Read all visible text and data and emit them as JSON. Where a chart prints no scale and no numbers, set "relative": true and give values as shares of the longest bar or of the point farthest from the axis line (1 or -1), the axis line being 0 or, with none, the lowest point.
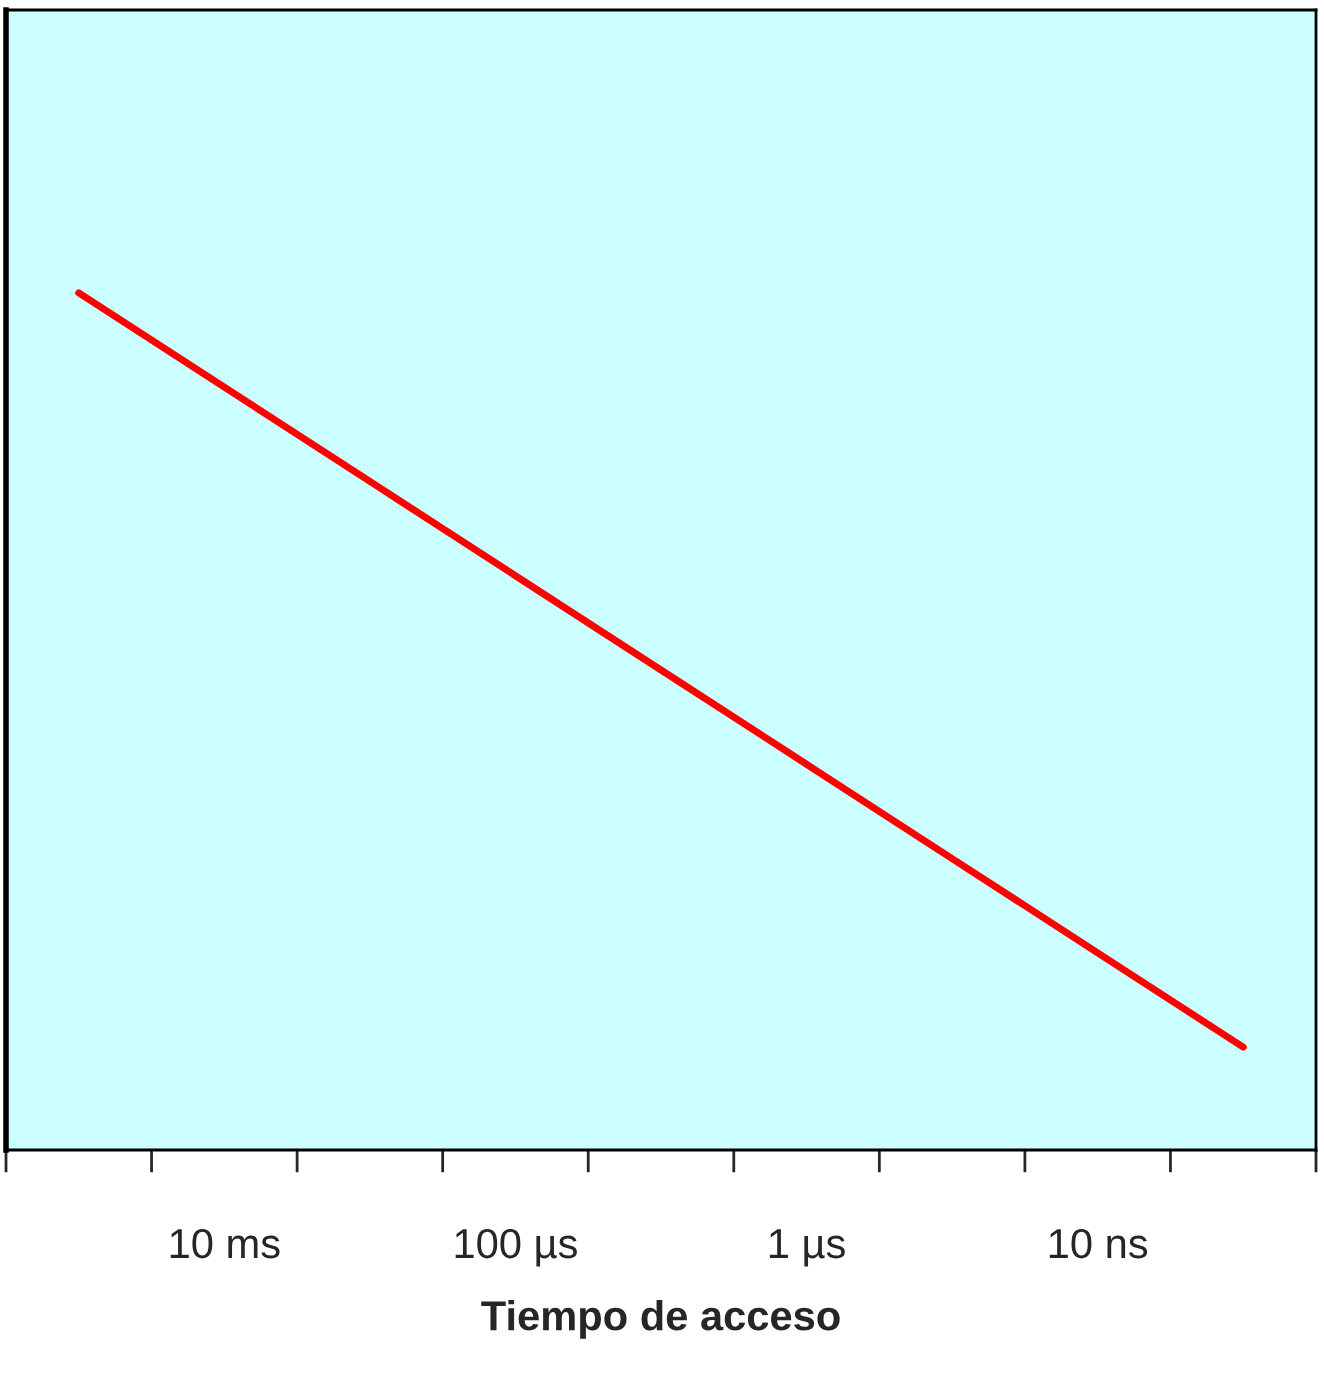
{
  "chart_data": {
    "type": "line",
    "xlabel": "Tiempo de acceso",
    "relative": true,
    "categories": [
      null,
      "10 ms",
      null,
      "100 µs",
      null,
      "1 µs",
      null,
      "10 ns",
      null
    ],
    "series": [
      {
        "color": "#ff0000",
        "values": [
          1,
          0.89,
          0.78,
          0.67,
          0.56,
          0.45,
          0.34,
          0.23,
          0.12
        ]
      }
    ],
    "grid": false,
    "legend": false,
    "marker": "none",
    "line_style": "solid"
  }
}
